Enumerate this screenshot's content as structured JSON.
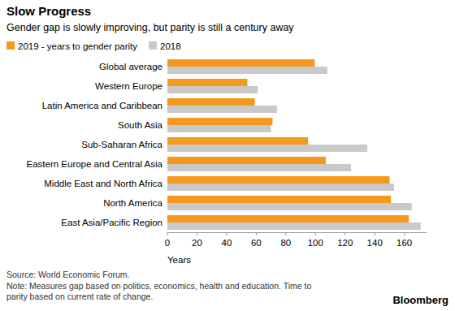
{
  "chart_data": {
    "type": "bar",
    "orientation": "horizontal",
    "title": "Slow Progress",
    "subtitle": "Gender gap is slowly improving, but parity is still a century away",
    "categories": [
      "Global average",
      "Western Europe",
      "Latin America and Caribbean",
      "South Asia",
      "Sub-Saharan Africa",
      "Eastern Europe and Central Asia",
      "Middle East and North Africa",
      "North America",
      "East Asia/Pacific Region"
    ],
    "series": [
      {
        "name": "2019 - years to gender parity",
        "color": "#f39a1e",
        "values": [
          99.5,
          54,
          59,
          71,
          95,
          107,
          150,
          151,
          163
        ]
      },
      {
        "name": "2018",
        "color": "#c9c9c9",
        "values": [
          108,
          61,
          74,
          70,
          135,
          124,
          153,
          165,
          171
        ]
      }
    ],
    "x_label": "Years",
    "xlim": [
      0,
      175
    ],
    "xticks": [
      0,
      20,
      40,
      60,
      80,
      100,
      120,
      140,
      160
    ],
    "grid": false,
    "legend": "top",
    "source": "Source: World Economic Forum.",
    "note": [
      "Note: Measures gap based on politics, economics, health and education. Time to",
      "parity based on current rate of change."
    ],
    "brand": "Bloomberg"
  }
}
